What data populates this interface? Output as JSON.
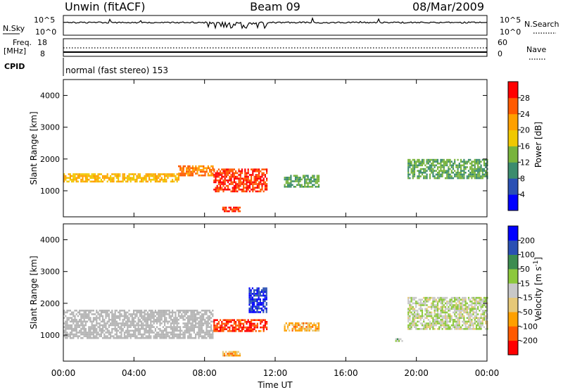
{
  "header": {
    "station": "Unwin (fitACF)",
    "beam": "Beam 09",
    "date": "08/Mar/2009"
  },
  "top_panels": {
    "nsky_label": "N.Sky",
    "nsky_ticks": [
      "10^5",
      "10^0"
    ],
    "nsearch_label": "N.Search",
    "nsearch_ticks": [
      "10^5",
      "10^0"
    ],
    "freq_label": "Freq.",
    "freq_unit": "[MHz]",
    "freq_ticks": [
      "18",
      "8"
    ],
    "nave_label": "Nave",
    "nave_ticks": [
      "60",
      "0"
    ],
    "cpid_label": "CPID",
    "cpid_value": "normal (fast stereo) 153"
  },
  "colors": {
    "power_scale": [
      "#0000ff",
      "#2a50b4",
      "#3c8c6e",
      "#78b43c",
      "#f0c800",
      "#ffa000",
      "#ff5a00",
      "#ff0000"
    ],
    "velocity_scale": [
      "#ff0000",
      "#ff5a00",
      "#ffa000",
      "#e6c878",
      "#c8c8c8",
      "#8cc83c",
      "#3c8c50",
      "#2a50b4",
      "#0000ff"
    ],
    "ground_scatter": "#b4b4b4"
  },
  "chart_data": [
    {
      "type": "heatmap",
      "title": "Power",
      "xlabel": "",
      "ylabel": "Slant Range [km]",
      "x_ticks": [
        "00:00",
        "04:00",
        "08:00",
        "12:00",
        "16:00",
        "20:00",
        "00:00"
      ],
      "y_ticks": [
        "1000",
        "2000",
        "3000",
        "4000"
      ],
      "ylim": [
        180,
        4500
      ],
      "colorbar": {
        "label": "Power [dB]",
        "ticks": [
          "4",
          "8",
          "12",
          "16",
          "20",
          "24",
          "28"
        ],
        "range": [
          0,
          32
        ]
      },
      "scatter_regions": [
        {
          "start_hour": 0.0,
          "end_hour": 6.5,
          "range_km": [
            1300,
            1550
          ],
          "value": 20
        },
        {
          "start_hour": 6.5,
          "end_hour": 8.5,
          "range_km": [
            1500,
            1800
          ],
          "value": 24
        },
        {
          "start_hour": 8.5,
          "end_hour": 11.5,
          "range_km": [
            1000,
            1700
          ],
          "value": 28
        },
        {
          "start_hour": 9.0,
          "end_hour": 10.0,
          "range_km": [
            380,
            500
          ],
          "value": 28
        },
        {
          "start_hour": 12.5,
          "end_hour": 14.5,
          "range_km": [
            1150,
            1500
          ],
          "value": 12
        },
        {
          "start_hour": 19.5,
          "end_hour": 24.0,
          "range_km": [
            1400,
            2000
          ],
          "value": 12
        }
      ]
    },
    {
      "type": "heatmap",
      "title": "Velocity",
      "xlabel": "Time UT",
      "ylabel": "Slant Range [km]",
      "x_ticks": [
        "00:00",
        "04:00",
        "08:00",
        "12:00",
        "16:00",
        "20:00",
        "00:00"
      ],
      "y_ticks": [
        "1000",
        "2000",
        "3000",
        "4000"
      ],
      "ylim": [
        180,
        4500
      ],
      "colorbar": {
        "label": "Velocity [m s^-1]",
        "ticks": [
          "200",
          "100",
          "50",
          "15",
          "-15",
          "-50",
          "-100",
          "-200"
        ],
        "range": [
          -250,
          250
        ]
      },
      "scatter_regions": [
        {
          "start_hour": 0.0,
          "end_hour": 8.5,
          "range_km": [
            900,
            1800
          ],
          "value": 0,
          "ground_scatter": true
        },
        {
          "start_hour": 8.5,
          "end_hour": 11.5,
          "range_km": [
            1100,
            1500
          ],
          "value": -200
        },
        {
          "start_hour": 10.5,
          "end_hour": 11.5,
          "range_km": [
            1700,
            2500
          ],
          "value": 200
        },
        {
          "start_hour": 12.5,
          "end_hour": 14.5,
          "range_km": [
            1150,
            1400
          ],
          "value": -100
        },
        {
          "start_hour": 9.0,
          "end_hour": 10.0,
          "range_km": [
            380,
            500
          ],
          "value": -100
        },
        {
          "start_hour": 18.8,
          "end_hour": 19.2,
          "range_km": [
            800,
            900
          ],
          "value": 50
        },
        {
          "start_hour": 19.5,
          "end_hour": 24.0,
          "range_km": [
            1200,
            2200
          ],
          "value": 15
        }
      ]
    }
  ]
}
